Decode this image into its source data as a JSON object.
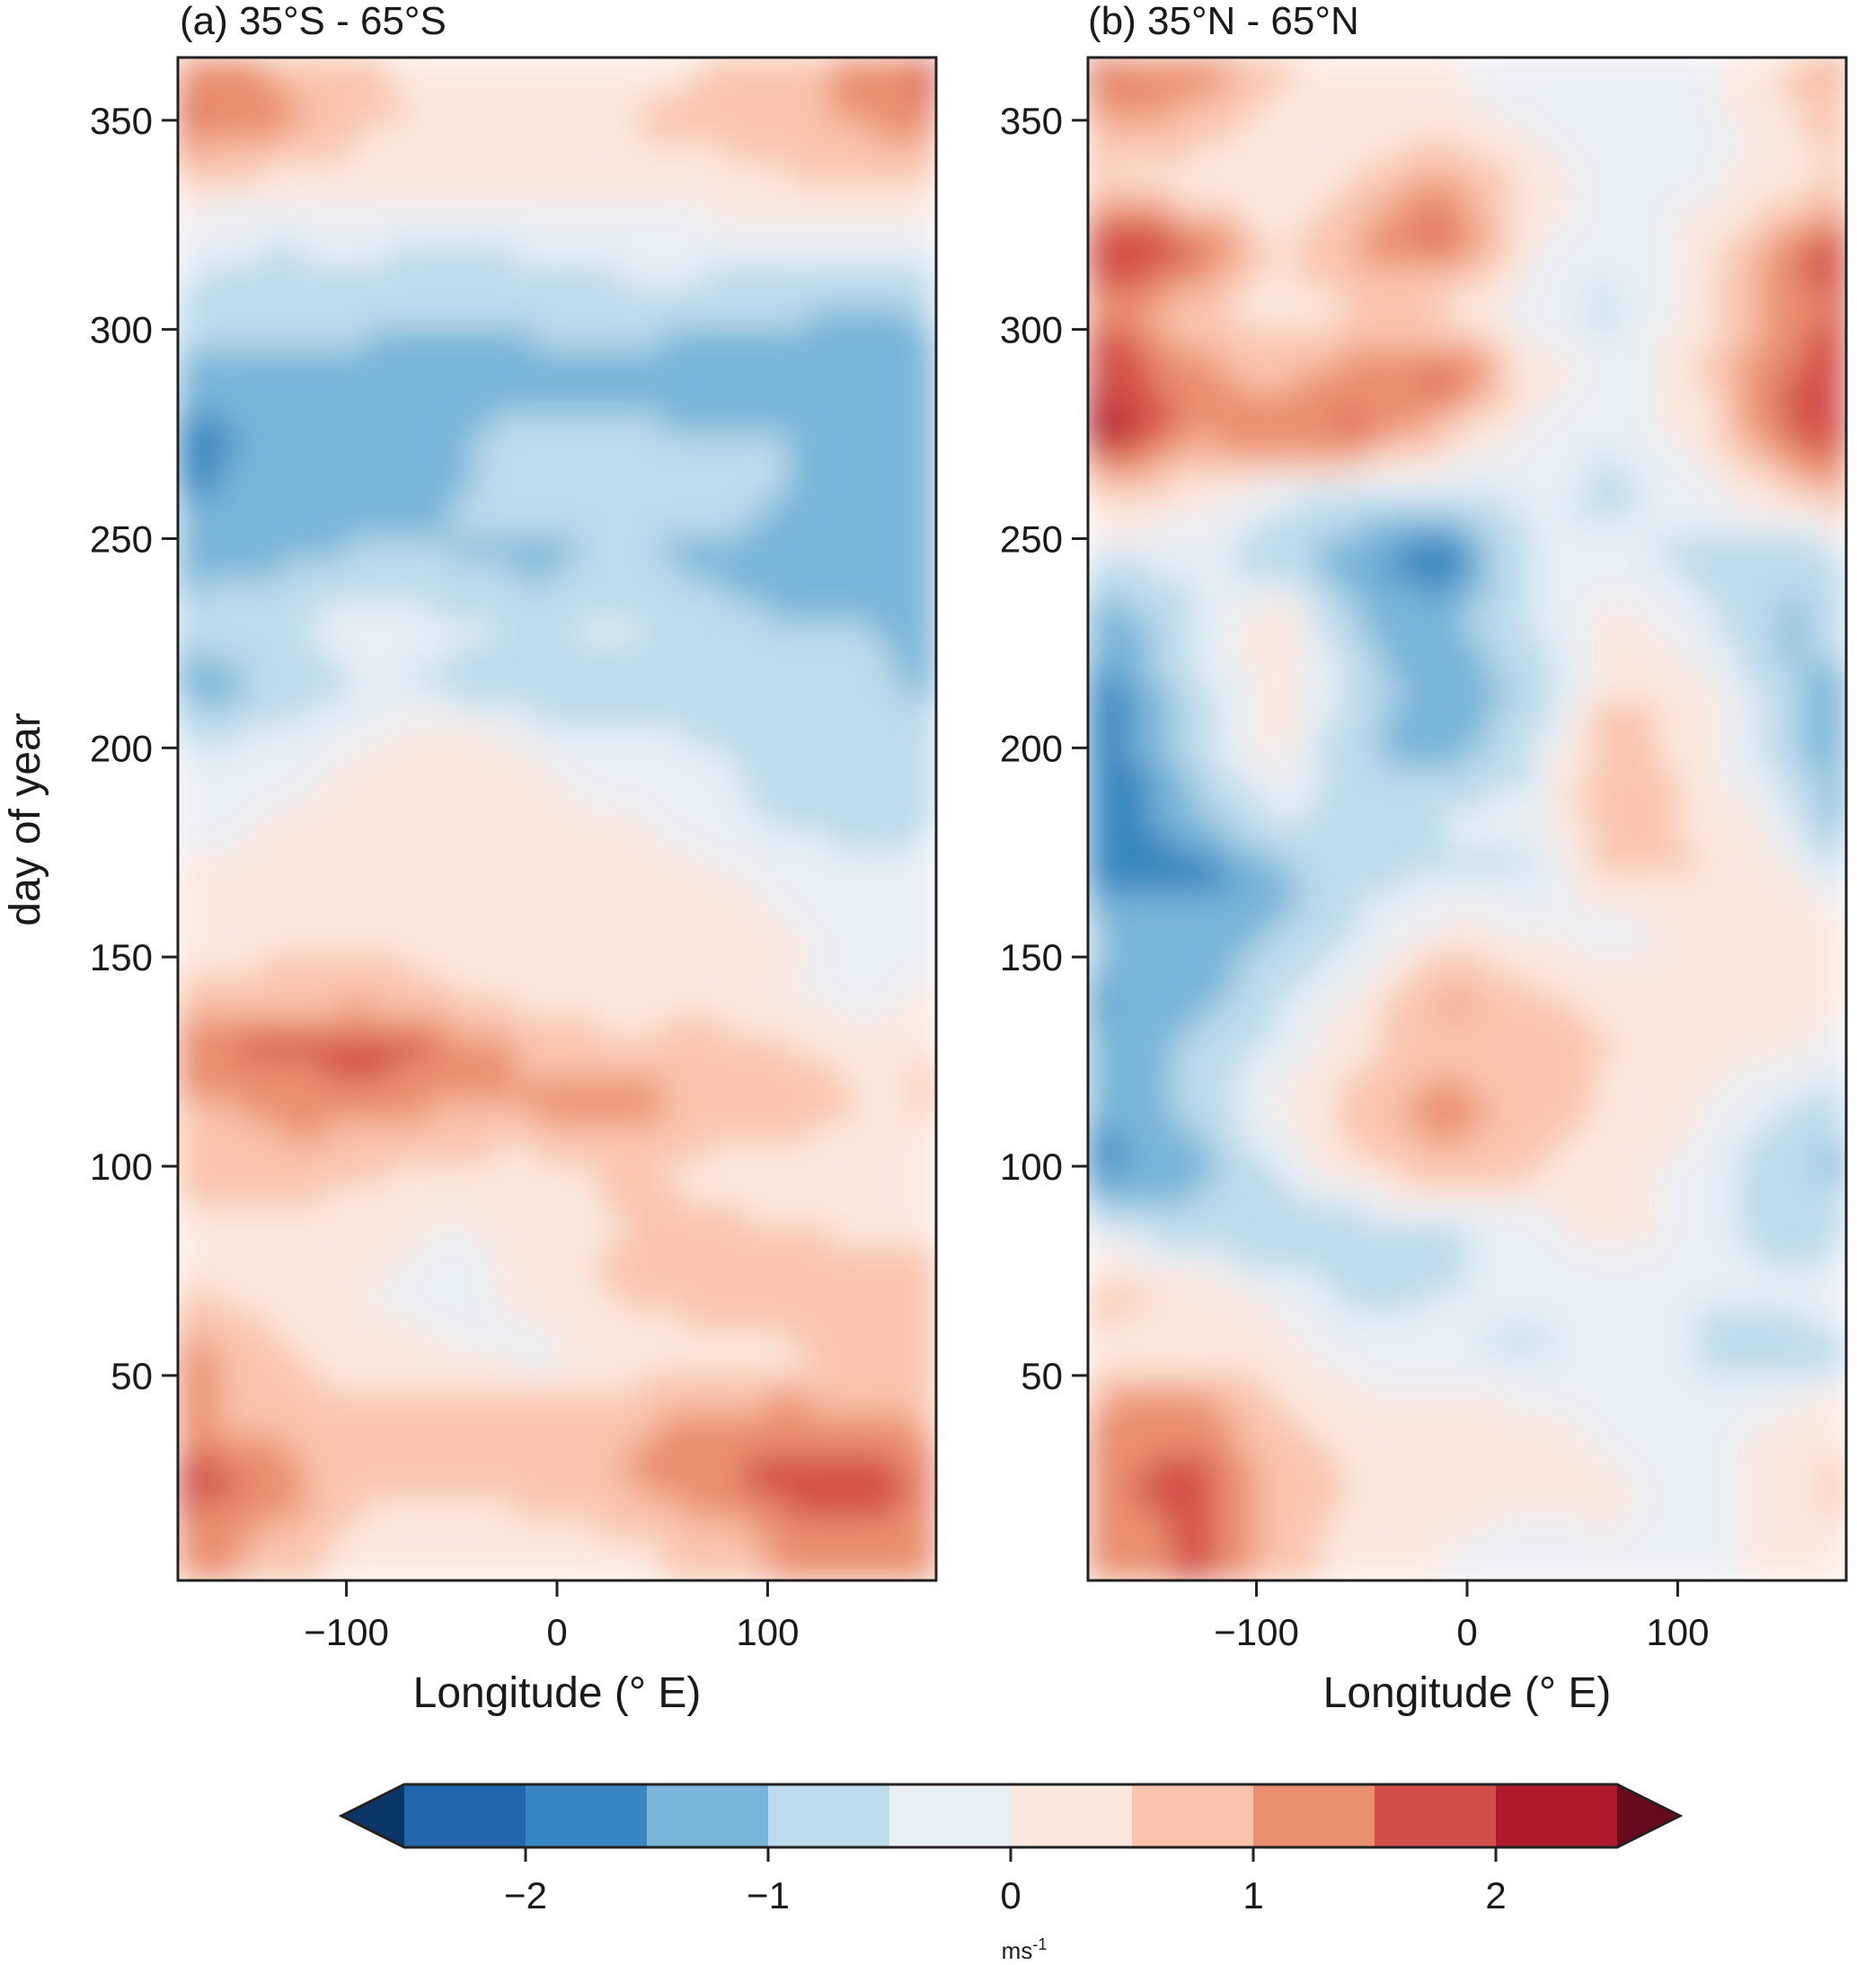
{
  "chart_data": {
    "type": "heatmap",
    "panels": [
      {
        "title": "(a) 35°S - 65°S",
        "xlabel": "Longitude (° E)",
        "ylabel": "day of year",
        "xlim": [
          -180,
          180
        ],
        "ylim": [
          1,
          365
        ],
        "xticks": [
          -100,
          0,
          100
        ],
        "xtick_labels": [
          "−100",
          "0",
          "100"
        ],
        "yticks": [
          50,
          100,
          150,
          200,
          250,
          300,
          350
        ],
        "ytick_labels": [
          "50",
          "100",
          "150",
          "200",
          "250",
          "300",
          "350"
        ],
        "lons": [
          -170,
          -130,
          -90,
          -50,
          -10,
          30,
          70,
          110,
          150,
          175
        ],
        "days": [
          10,
          25,
          40,
          55,
          70,
          85,
          100,
          115,
          128,
          140,
          155,
          170,
          185,
          200,
          215,
          230,
          245,
          260,
          275,
          290,
          305,
          320,
          335,
          350,
          360
        ],
        "values": [
          [
            1.2,
            0.8,
            0.3,
            0.2,
            0.2,
            0.4,
            0.6,
            1.1,
            1.4,
            1.0
          ],
          [
            1.8,
            1.3,
            0.6,
            0.6,
            0.8,
            1.0,
            1.4,
            1.8,
            1.9,
            1.4
          ],
          [
            1.0,
            0.8,
            0.6,
            0.8,
            0.9,
            0.9,
            1.1,
            1.2,
            1.0,
            0.9
          ],
          [
            1.2,
            0.6,
            0.2,
            0.1,
            -0.2,
            0.1,
            0.3,
            0.4,
            0.5,
            0.8
          ],
          [
            0.5,
            0.3,
            0.0,
            -0.3,
            0.2,
            0.6,
            0.7,
            0.8,
            0.9,
            0.9
          ],
          [
            0.4,
            0.3,
            0.2,
            0.0,
            0.2,
            0.5,
            0.6,
            0.5,
            0.4,
            0.3
          ],
          [
            0.6,
            0.8,
            0.6,
            0.4,
            0.3,
            0.6,
            0.4,
            0.3,
            0.2,
            0.3
          ],
          [
            0.9,
            1.2,
            1.3,
            1.0,
            1.1,
            1.3,
            0.9,
            0.8,
            0.4,
            0.6
          ],
          [
            1.4,
            1.6,
            1.7,
            1.4,
            0.8,
            0.6,
            0.8,
            0.5,
            0.3,
            0.5
          ],
          [
            0.6,
            0.7,
            0.9,
            0.6,
            0.3,
            0.3,
            0.2,
            0.0,
            -0.2,
            0.1
          ],
          [
            0.2,
            0.4,
            0.3,
            0.2,
            0.1,
            0.2,
            0.3,
            0.1,
            -0.3,
            -0.2
          ],
          [
            0.1,
            0.2,
            0.3,
            0.1,
            0.2,
            0.3,
            0.1,
            -0.2,
            -0.4,
            -0.3
          ],
          [
            -0.2,
            0.0,
            0.3,
            0.2,
            0.1,
            0.0,
            -0.3,
            -0.6,
            -0.8,
            -0.6
          ],
          [
            -0.4,
            -0.3,
            0.1,
            0.3,
            0.0,
            -0.3,
            -0.5,
            -0.7,
            -0.9,
            -0.8
          ],
          [
            -1.3,
            -0.8,
            -0.5,
            -0.6,
            -1.0,
            -0.7,
            -0.8,
            -1.0,
            -0.9,
            -1.1
          ],
          [
            -0.8,
            -0.5,
            -0.3,
            -0.4,
            -0.5,
            -0.4,
            -0.7,
            -1.0,
            -1.0,
            -1.1
          ],
          [
            -1.2,
            -1.1,
            -0.9,
            -1.0,
            -1.1,
            -1.0,
            -1.1,
            -1.3,
            -1.3,
            -1.4
          ],
          [
            -1.5,
            -1.4,
            -1.2,
            -1.0,
            -0.9,
            -0.8,
            -0.7,
            -1.0,
            -1.2,
            -1.1
          ],
          [
            -1.6,
            -1.4,
            -1.2,
            -1.1,
            -0.8,
            -0.9,
            -1.0,
            -1.0,
            -1.1,
            -1.2
          ],
          [
            -1.4,
            -1.3,
            -1.3,
            -1.4,
            -1.2,
            -1.2,
            -1.3,
            -1.4,
            -1.5,
            -1.4
          ],
          [
            -0.6,
            -0.6,
            -0.7,
            -0.9,
            -0.8,
            -0.7,
            -0.8,
            -0.9,
            -1.0,
            -0.9
          ],
          [
            -0.4,
            -0.5,
            -0.4,
            -0.6,
            -0.4,
            -0.3,
            -0.2,
            -0.3,
            -0.4,
            -0.3
          ],
          [
            0.4,
            0.3,
            0.1,
            0.2,
            0.1,
            0.2,
            0.2,
            0.4,
            0.6,
            0.6
          ],
          [
            1.6,
            1.2,
            0.6,
            0.4,
            0.4,
            0.5,
            0.7,
            0.9,
            1.1,
            1.3
          ],
          [
            1.4,
            0.9,
            0.6,
            0.3,
            0.2,
            0.3,
            0.5,
            0.8,
            1.3,
            1.6
          ]
        ]
      },
      {
        "title": "(b) 35°N - 65°N",
        "xlabel": "Longitude (° E)",
        "ylabel": "",
        "xlim": [
          -180,
          180
        ],
        "ylim": [
          1,
          365
        ],
        "xticks": [
          -100,
          0,
          100
        ],
        "xtick_labels": [
          "−100",
          "0",
          "100"
        ],
        "yticks": [
          50,
          100,
          150,
          200,
          250,
          300,
          350
        ],
        "ytick_labels": [
          "50",
          "100",
          "150",
          "200",
          "250",
          "300",
          "350"
        ],
        "lons": [
          -170,
          -130,
          -90,
          -50,
          -10,
          30,
          70,
          110,
          150,
          175
        ],
        "days": [
          10,
          25,
          40,
          55,
          70,
          85,
          100,
          115,
          128,
          140,
          155,
          170,
          185,
          200,
          215,
          230,
          245,
          260,
          275,
          290,
          305,
          320,
          335,
          350,
          360
        ],
        "values": [
          [
            1.0,
            1.6,
            0.9,
            0.2,
            0.0,
            -0.2,
            0.0,
            -0.3,
            0.2,
            0.4
          ],
          [
            1.4,
            1.8,
            0.8,
            0.4,
            0.3,
            0.2,
            0.1,
            -0.2,
            0.3,
            0.6
          ],
          [
            1.2,
            1.3,
            0.6,
            0.2,
            0.3,
            0.1,
            -0.2,
            -0.3,
            0.1,
            0.3
          ],
          [
            0.3,
            0.4,
            0.2,
            -0.2,
            -0.4,
            -0.6,
            -0.2,
            -0.5,
            -0.8,
            -0.6
          ],
          [
            0.7,
            0.3,
            -0.2,
            -0.6,
            -0.5,
            -0.4,
            -0.3,
            -0.5,
            -0.4,
            -0.3
          ],
          [
            -0.4,
            -0.8,
            -1.0,
            -0.8,
            -0.6,
            -0.3,
            0.3,
            -0.2,
            -0.7,
            -0.6
          ],
          [
            -1.7,
            -1.2,
            -0.4,
            0.5,
            0.9,
            0.6,
            0.2,
            -0.2,
            -0.8,
            -1.1
          ],
          [
            -1.4,
            -0.9,
            0.1,
            0.8,
            1.2,
            0.8,
            0.4,
            0.1,
            -0.5,
            -0.7
          ],
          [
            -1.2,
            -0.9,
            -0.3,
            0.4,
            0.9,
            0.7,
            0.5,
            0.2,
            0.1,
            -0.1
          ],
          [
            -1.6,
            -1.3,
            -0.6,
            0.2,
            1.1,
            0.6,
            0.3,
            0.2,
            0.3,
            0.1
          ],
          [
            -0.9,
            -1.1,
            -1.0,
            -0.4,
            0.2,
            0.1,
            -0.3,
            0.2,
            0.4,
            0.3
          ],
          [
            -1.6,
            -1.8,
            -1.2,
            -0.6,
            -0.5,
            -0.6,
            0.6,
            0.5,
            0.2,
            -0.6
          ],
          [
            -1.8,
            -1.1,
            -0.3,
            -0.7,
            -0.5,
            -0.3,
            1.0,
            0.4,
            -0.3,
            -1.2
          ],
          [
            -1.9,
            -0.8,
            0.2,
            -1.0,
            -1.2,
            -0.6,
            1.1,
            0.1,
            -0.8,
            -1.3
          ],
          [
            -1.6,
            -0.6,
            0.3,
            -0.8,
            -1.3,
            -0.9,
            0.4,
            0.2,
            -0.9,
            -1.1
          ],
          [
            -1.3,
            -0.5,
            0.4,
            -1.1,
            -1.2,
            -0.4,
            0.2,
            -0.3,
            -1.1,
            -0.9
          ],
          [
            -0.5,
            -0.4,
            -0.8,
            -1.4,
            -1.9,
            -0.5,
            -0.3,
            -0.7,
            -0.9,
            -0.7
          ],
          [
            0.6,
            0.2,
            -0.4,
            -0.6,
            -0.7,
            -0.4,
            -0.6,
            -0.2,
            0.4,
            0.9
          ],
          [
            2.3,
            1.1,
            1.4,
            1.6,
            0.6,
            -0.2,
            -0.5,
            0.3,
            1.4,
            1.9
          ],
          [
            1.9,
            1.2,
            0.7,
            1.3,
            1.7,
            0.4,
            -0.3,
            0.4,
            1.5,
            1.8
          ],
          [
            1.3,
            0.6,
            0.3,
            0.4,
            0.3,
            -0.3,
            -0.6,
            0.3,
            1.1,
            1.6
          ],
          [
            2.1,
            1.7,
            0.4,
            1.2,
            1.7,
            0.1,
            -0.4,
            0.2,
            1.2,
            1.9
          ],
          [
            0.4,
            0.2,
            0.0,
            0.6,
            1.2,
            0.3,
            -0.2,
            -0.1,
            0.2,
            0.5
          ],
          [
            1.1,
            0.8,
            0.3,
            0.2,
            0.1,
            -0.1,
            -0.3,
            -0.2,
            0.3,
            0.8
          ],
          [
            1.5,
            1.4,
            0.6,
            0.3,
            0.1,
            -0.2,
            -0.3,
            -0.2,
            0.5,
            1.0
          ]
        ]
      }
    ],
    "colorbar": {
      "levels": [
        -2.5,
        -2.0,
        -1.5,
        -1.0,
        -0.5,
        0.0,
        0.5,
        1.0,
        1.5,
        2.0,
        2.5
      ],
      "colors": [
        "#2166ac",
        "#3987c0",
        "#79b5d8",
        "#bcdbeb",
        "#e8eff5",
        "#fce8de",
        "#f9c4ab",
        "#ea8f70",
        "#d3504a",
        "#b01a2e"
      ],
      "extend_low_color": "#0b3768",
      "extend_high_color": "#680a1e",
      "ticks": [
        -2,
        -1,
        0,
        1,
        2
      ],
      "tick_labels": [
        "−2",
        "−1",
        "0",
        "1",
        "2"
      ],
      "label": "ms",
      "label_exponent": "-1"
    }
  }
}
